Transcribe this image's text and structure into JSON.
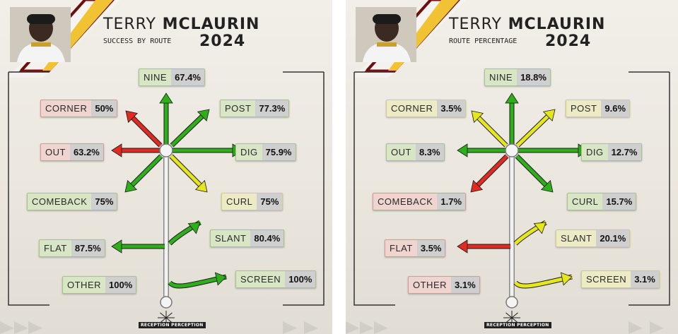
{
  "colors": {
    "green": "#2eae19",
    "yellow": "#e6e61c",
    "red": "#e02a22"
  },
  "panels": [
    {
      "player_first": "TERRY",
      "player_last": "MCLAURIN",
      "subtitle": "SUCCESS BY ROUTE",
      "year": "2024",
      "logo": "RECEPTION PERCEPTION",
      "routes": [
        {
          "name": "NINE",
          "value": "67.4%",
          "color": "green"
        },
        {
          "name": "CORNER",
          "value": "50%",
          "color": "red"
        },
        {
          "name": "POST",
          "value": "77.3%",
          "color": "green"
        },
        {
          "name": "OUT",
          "value": "63.2%",
          "color": "red"
        },
        {
          "name": "DIG",
          "value": "75.9%",
          "color": "green"
        },
        {
          "name": "COMEBACK",
          "value": "75%",
          "color": "green"
        },
        {
          "name": "CURL",
          "value": "75%",
          "color": "yellow"
        },
        {
          "name": "FLAT",
          "value": "87.5%",
          "color": "green"
        },
        {
          "name": "SLANT",
          "value": "80.4%",
          "color": "green"
        },
        {
          "name": "OTHER",
          "value": "100%",
          "color": "green"
        },
        {
          "name": "SCREEN",
          "value": "100%",
          "color": "green"
        }
      ]
    },
    {
      "player_first": "TERRY",
      "player_last": "MCLAURIN",
      "subtitle": "ROUTE PERCENTAGE",
      "year": "2024",
      "logo": "RECEPTION PERCEPTION",
      "routes": [
        {
          "name": "NINE",
          "value": "18.8%",
          "color": "green"
        },
        {
          "name": "CORNER",
          "value": "3.5%",
          "color": "yellow"
        },
        {
          "name": "POST",
          "value": "9.6%",
          "color": "yellow"
        },
        {
          "name": "OUT",
          "value": "8.3%",
          "color": "green"
        },
        {
          "name": "DIG",
          "value": "12.7%",
          "color": "green"
        },
        {
          "name": "COMEBACK",
          "value": "1.7%",
          "color": "red"
        },
        {
          "name": "CURL",
          "value": "15.7%",
          "color": "green"
        },
        {
          "name": "FLAT",
          "value": "3.5%",
          "color": "red"
        },
        {
          "name": "SLANT",
          "value": "20.1%",
          "color": "yellow"
        },
        {
          "name": "OTHER",
          "value": "3.1%",
          "color": "red"
        },
        {
          "name": "SCREEN",
          "value": "3.1%",
          "color": "yellow"
        }
      ]
    }
  ]
}
